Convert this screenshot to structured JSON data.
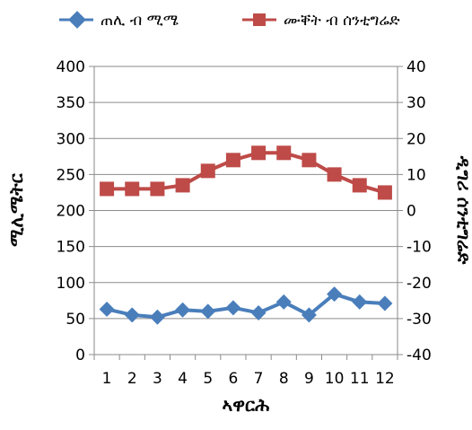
{
  "chart_data": {
    "type": "line",
    "title": "",
    "categories": [
      "1",
      "2",
      "3",
      "4",
      "5",
      "6",
      "7",
      "8",
      "9",
      "10",
      "11",
      "12"
    ],
    "xlabel": "ኣዋርሕ",
    "ylabel": "ሚሊሜትር",
    "y2label": "ዲግሪ ሰንቲግሬድ",
    "ylim": [
      0,
      400
    ],
    "y2lim": [
      -40,
      40
    ],
    "yticks": [
      0,
      50,
      100,
      150,
      200,
      250,
      300,
      350,
      400
    ],
    "y2ticks": [
      -40,
      -30,
      -20,
      -10,
      0,
      10,
      20,
      30,
      40
    ],
    "grid": true,
    "legend": "top",
    "series": [
      {
        "name": "ጠሊ ብ ሚሜ",
        "axis": "left",
        "marker": "diamond",
        "color": "#4a7ebb",
        "values": [
          63,
          55,
          52,
          62,
          60,
          65,
          58,
          73,
          55,
          84,
          73,
          71
        ]
      },
      {
        "name": "ሙቐት ብ ሰንቲግሬድ",
        "axis": "right",
        "marker": "square",
        "color": "#be4b48",
        "values": [
          6,
          6,
          6,
          7,
          11,
          14,
          16,
          16,
          14,
          10,
          7,
          5
        ]
      }
    ]
  }
}
